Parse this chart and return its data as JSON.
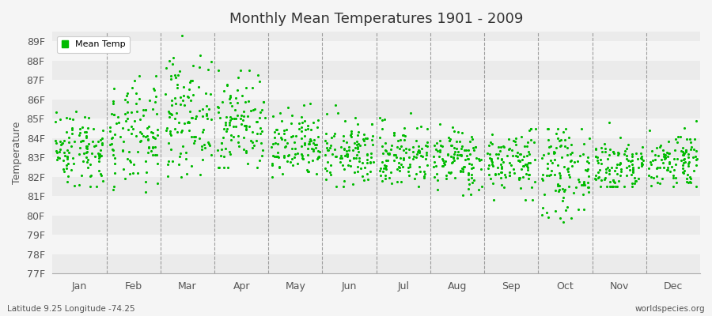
{
  "title": "Monthly Mean Temperatures 1901 - 2009",
  "ylabel": "Temperature",
  "xlabel_months": [
    "Jan",
    "Feb",
    "Mar",
    "Apr",
    "May",
    "Jun",
    "Jul",
    "Aug",
    "Sep",
    "Oct",
    "Nov",
    "Dec"
  ],
  "subtitle": "Latitude 9.25 Longitude -74.25",
  "watermark": "worldspecies.org",
  "ylim": [
    77,
    89.5
  ],
  "yticks": [
    77,
    78,
    79,
    80,
    81,
    82,
    83,
    84,
    85,
    86,
    87,
    88,
    89
  ],
  "ytick_labels": [
    "77F",
    "78F",
    "79F",
    "80F",
    "81F",
    "82F",
    "83F",
    "84F",
    "85F",
    "86F",
    "87F",
    "88F",
    "89F"
  ],
  "dot_color": "#00BB00",
  "dot_size": 5,
  "background_color": "#F5F5F5",
  "band_color_odd": "#EBEBEB",
  "band_color_even": "#F5F5F5",
  "legend_label": "Mean Temp",
  "years": 109,
  "monthly_means": [
    83.5,
    84.0,
    85.2,
    84.8,
    83.5,
    83.2,
    83.1,
    82.9,
    82.8,
    82.3,
    82.5,
    82.9
  ],
  "monthly_stds": [
    1.0,
    1.4,
    1.5,
    1.3,
    0.9,
    0.85,
    0.85,
    0.8,
    0.85,
    1.1,
    0.85,
    0.75
  ],
  "monthly_mins": [
    81.5,
    79.5,
    82.0,
    82.5,
    82.0,
    81.5,
    81.5,
    81.0,
    80.8,
    79.0,
    81.5,
    81.5
  ],
  "monthly_maxs": [
    86.5,
    87.2,
    89.3,
    87.5,
    86.0,
    85.8,
    85.5,
    84.8,
    84.5,
    84.5,
    84.8,
    85.2
  ],
  "seed": 42
}
